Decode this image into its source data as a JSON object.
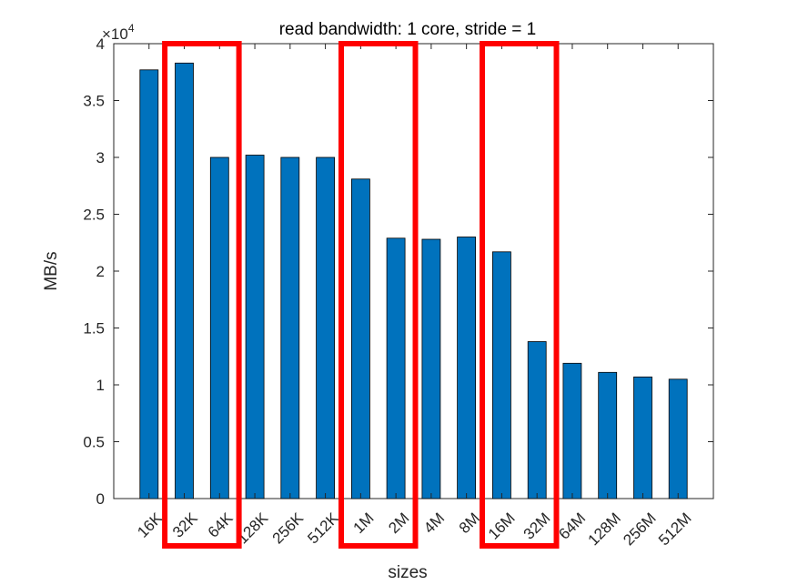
{
  "chart_data": {
    "type": "bar",
    "title": "read bandwidth: 1 core, stride = 1",
    "xlabel": "sizes",
    "ylabel": "MB/s",
    "exponent_label": "×10",
    "exponent_power": "4",
    "categories": [
      "16K",
      "32K",
      "64K",
      "128K",
      "256K",
      "512K",
      "1M",
      "2M",
      "4M",
      "8M",
      "16M",
      "32M",
      "64M",
      "128M",
      "256M",
      "512M"
    ],
    "values": [
      37700,
      38300,
      30000,
      30200,
      30000,
      30000,
      28100,
      22900,
      22800,
      23000,
      21700,
      13800,
      11900,
      11100,
      10700,
      10500
    ],
    "ylim": [
      0,
      40000
    ],
    "yticks": [
      0,
      5000,
      10000,
      15000,
      20000,
      25000,
      30000,
      35000,
      40000
    ],
    "ytick_labels": [
      "0",
      "0.5",
      "1",
      "1.5",
      "2",
      "2.5",
      "3",
      "3.5",
      "4"
    ],
    "grid": false,
    "bar_color": "#0072BD",
    "highlight_color": "#FF0000",
    "highlight_groups": [
      {
        "from": "32K",
        "to": "64K"
      },
      {
        "from": "1M",
        "to": "2M"
      },
      {
        "from": "16M",
        "to": "32M"
      }
    ]
  }
}
